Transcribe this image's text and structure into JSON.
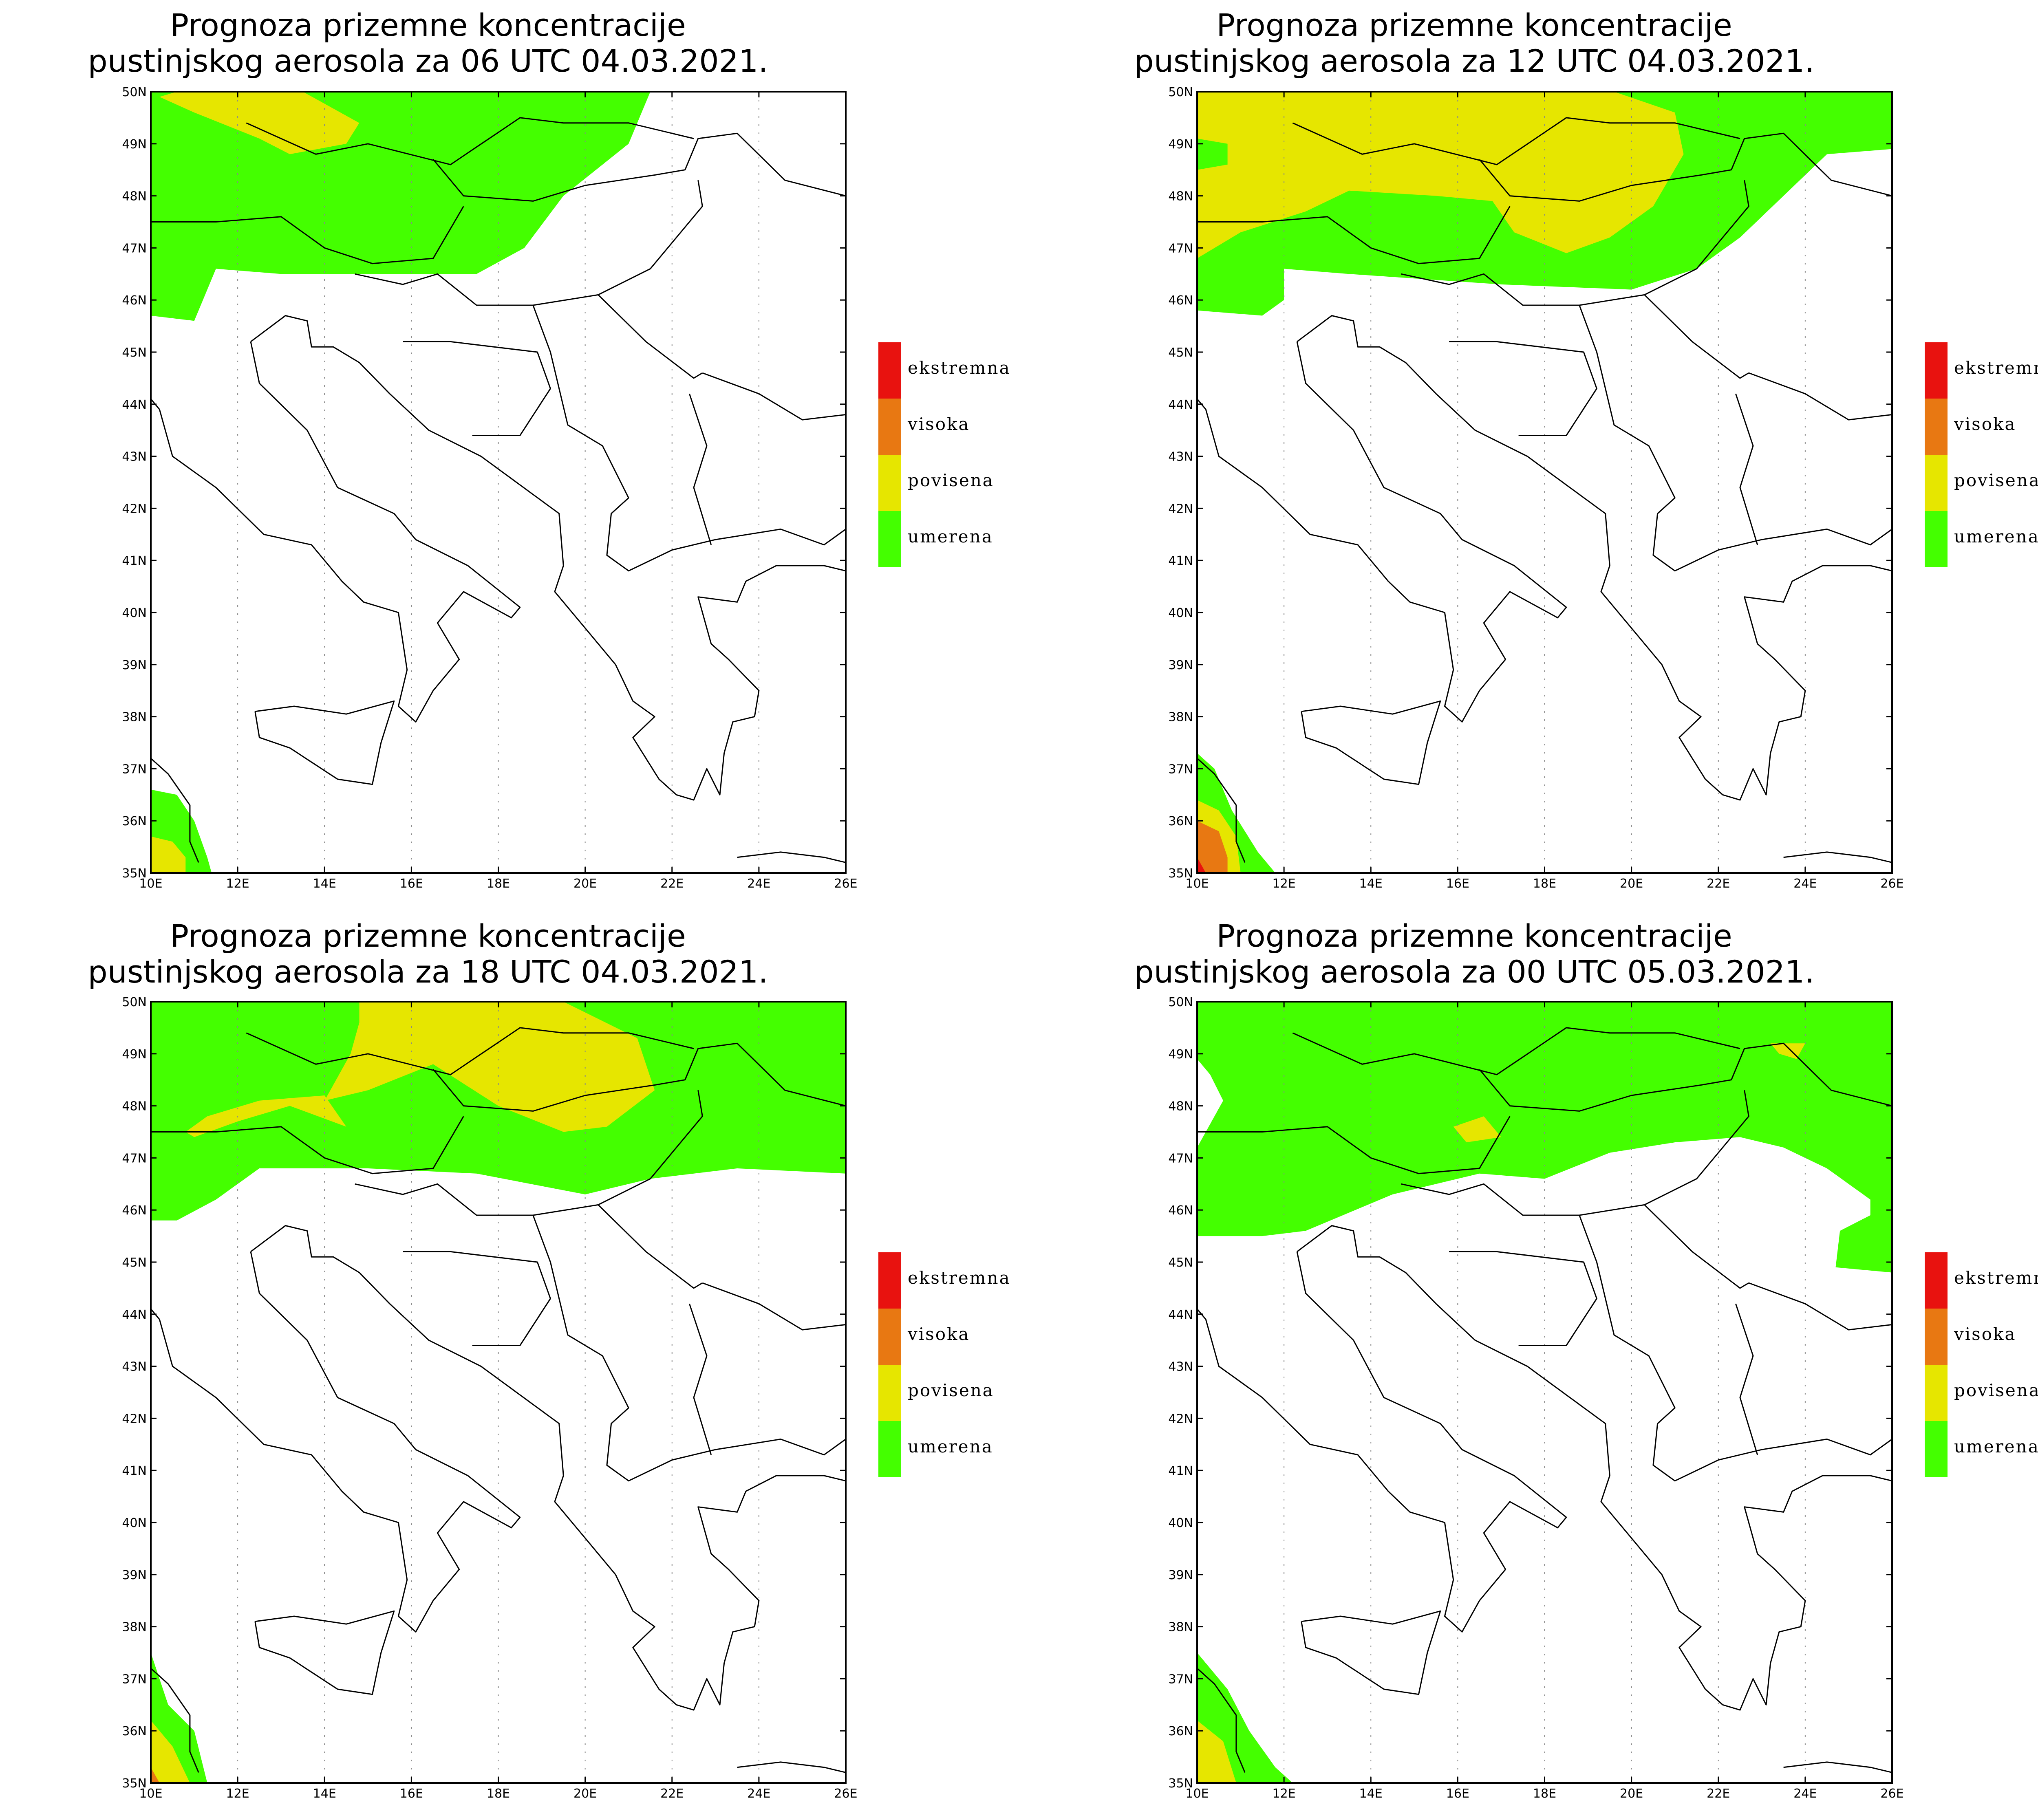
{
  "colors": {
    "ekstremna": "#e8120f",
    "visoka": "#e87812",
    "povisena": "#e6e600",
    "umerena": "#44ff00",
    "coast": "#000000",
    "grid": "#888888"
  },
  "legend": {
    "items": [
      {
        "key": "ekstremna",
        "label": "ekstremna"
      },
      {
        "key": "visoka",
        "label": "visoka"
      },
      {
        "key": "povisena",
        "label": "povisena"
      },
      {
        "key": "umerena",
        "label": "umerena"
      }
    ]
  },
  "axes": {
    "lat_labels": [
      "50N",
      "49N",
      "48N",
      "47N",
      "46N",
      "45N",
      "44N",
      "43N",
      "42N",
      "41N",
      "40N",
      "39N",
      "38N",
      "37N",
      "36N",
      "35N"
    ],
    "lon_labels": [
      "10E",
      "12E",
      "14E",
      "16E",
      "18E",
      "20E",
      "22E",
      "24E",
      "26E"
    ]
  },
  "panels": [
    {
      "title_line1": "Prognoza prizemne koncentracije",
      "title_line2": "pustinjskog aerosola za 06 UTC 04.03.2021."
    },
    {
      "title_line1": "Prognoza prizemne koncentracije",
      "title_line2": "pustinjskog aerosola za 12 UTC 04.03.2021."
    },
    {
      "title_line1": "Prognoza prizemne koncentracije",
      "title_line2": "pustinjskog aerosola za 18 UTC 04.03.2021."
    },
    {
      "title_line1": "Prognoza prizemne koncentracije",
      "title_line2": "pustinjskog aerosola za 00 UTC 05.03.2021."
    }
  ]
}
